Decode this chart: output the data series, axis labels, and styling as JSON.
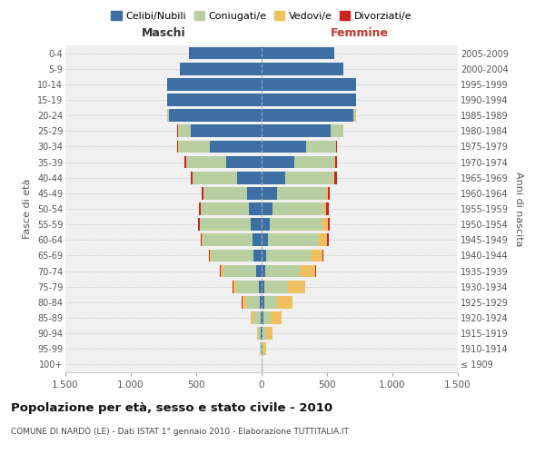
{
  "age_groups": [
    "100+",
    "95-99",
    "90-94",
    "85-89",
    "80-84",
    "75-79",
    "70-74",
    "65-69",
    "60-64",
    "55-59",
    "50-54",
    "45-49",
    "40-44",
    "35-39",
    "30-34",
    "25-29",
    "20-24",
    "15-19",
    "10-14",
    "5-9",
    "0-4"
  ],
  "birth_years": [
    "≤ 1909",
    "1910-1914",
    "1915-1919",
    "1920-1924",
    "1925-1929",
    "1930-1934",
    "1935-1939",
    "1940-1944",
    "1945-1949",
    "1950-1954",
    "1955-1959",
    "1960-1964",
    "1965-1969",
    "1970-1974",
    "1975-1979",
    "1980-1984",
    "1985-1989",
    "1990-1994",
    "1995-1999",
    "2000-2004",
    "2005-2009"
  ],
  "male": {
    "celibi": [
      0,
      3,
      5,
      10,
      15,
      20,
      40,
      60,
      70,
      85,
      95,
      110,
      185,
      270,
      395,
      545,
      705,
      720,
      720,
      625,
      555
    ],
    "coniugati": [
      2,
      8,
      22,
      55,
      105,
      175,
      255,
      325,
      380,
      385,
      370,
      335,
      340,
      305,
      240,
      95,
      18,
      4,
      2,
      0,
      0
    ],
    "vedovi": [
      1,
      4,
      10,
      18,
      28,
      22,
      18,
      10,
      5,
      3,
      2,
      2,
      2,
      1,
      1,
      1,
      0,
      0,
      0,
      0,
      0
    ],
    "divorziati": [
      0,
      0,
      0,
      1,
      2,
      5,
      5,
      8,
      12,
      15,
      14,
      12,
      14,
      12,
      9,
      3,
      1,
      0,
      0,
      0,
      0
    ]
  },
  "female": {
    "nubili": [
      2,
      5,
      10,
      12,
      18,
      22,
      28,
      35,
      50,
      62,
      82,
      118,
      182,
      250,
      340,
      530,
      700,
      720,
      720,
      628,
      555
    ],
    "coniugate": [
      2,
      10,
      24,
      55,
      100,
      180,
      265,
      340,
      390,
      400,
      390,
      375,
      368,
      308,
      228,
      92,
      18,
      4,
      2,
      0,
      0
    ],
    "vedove": [
      3,
      18,
      48,
      88,
      118,
      128,
      118,
      90,
      62,
      42,
      24,
      14,
      8,
      5,
      3,
      2,
      1,
      0,
      0,
      0,
      0
    ],
    "divorziate": [
      0,
      0,
      0,
      1,
      2,
      4,
      5,
      8,
      15,
      18,
      16,
      15,
      17,
      12,
      8,
      3,
      1,
      0,
      0,
      0,
      0
    ]
  },
  "colors": {
    "celibi_nubili": "#3d6fa5",
    "coniugati": "#b8cfa2",
    "vedovi": "#f0c060",
    "divorziati": "#cc2222"
  },
  "xlim": 1500,
  "title": "Popolazione per età, sesso e stato civile - 2010",
  "subtitle": "COMUNE DI NARDÒ (LE) - Dati ISTAT 1° gennaio 2010 - Elaborazione TUTTITALIA.IT",
  "label_maschi": "Maschi",
  "label_femmine": "Femmine",
  "ylabel_left": "Fasce di età",
  "ylabel_right": "Anni di nascita",
  "legend": [
    "Celibi/Nubili",
    "Coniugati/e",
    "Vedovi/e",
    "Divorziati/e"
  ],
  "background_color": "#ffffff",
  "plot_bg_color": "#f0f0f0",
  "grid_color": "#cccccc"
}
